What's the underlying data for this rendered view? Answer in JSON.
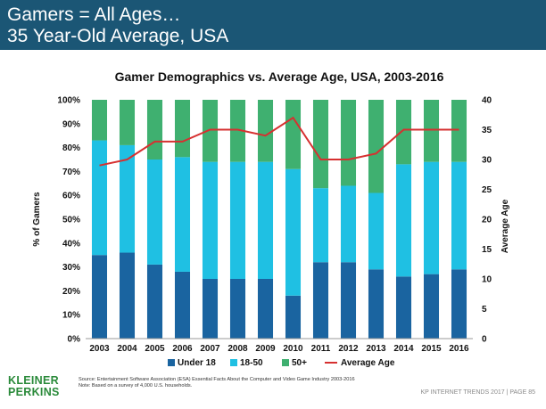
{
  "header": {
    "line1": "Gamers = All Ages…",
    "line2": "35 Year-Old Average, USA"
  },
  "footer": {
    "source_line1": "Source: Entertainment Software Association (ESA) Essential Facts About the Computer and Video Game Industry 2003-2016",
    "source_line2": "Note: Based on a survey of 4,000 U.S. households.",
    "logo_line1": "KLEINER",
    "logo_line2": "PERKINS",
    "page_info": "KP INTERNET TRENDS 2017   |   PAGE 85"
  },
  "colors": {
    "header_bg": "#1b5675",
    "under18": "#1a64a0",
    "age18_50": "#1fc0e3",
    "age50plus": "#3fb070",
    "avg_line": "#d63030",
    "logo": "#2a8a3a"
  },
  "chart_data": {
    "type": "bar",
    "stacked": true,
    "title": "Gamer Demographics vs. Average Age, USA, 2003-2016",
    "ylabel": "% of Gamers",
    "y2label": "Average Age",
    "ylim": [
      0,
      100
    ],
    "y2lim": [
      0,
      40
    ],
    "yticks": [
      "0%",
      "10%",
      "20%",
      "30%",
      "40%",
      "50%",
      "60%",
      "70%",
      "80%",
      "90%",
      "100%"
    ],
    "y2ticks": [
      "0",
      "5",
      "10",
      "15",
      "20",
      "25",
      "30",
      "35",
      "40"
    ],
    "categories": [
      "2003",
      "2004",
      "2005",
      "2006",
      "2007",
      "2008",
      "2009",
      "2010",
      "2011",
      "2012",
      "2013",
      "2014",
      "2015",
      "2016"
    ],
    "series": [
      {
        "name": "Under 18",
        "values": [
          35,
          36,
          31,
          28,
          25,
          25,
          25,
          18,
          32,
          32,
          29,
          26,
          27,
          29
        ]
      },
      {
        "name": "18-50",
        "values": [
          48,
          45,
          44,
          48,
          49,
          49,
          49,
          53,
          31,
          32,
          32,
          47,
          47,
          45
        ]
      },
      {
        "name": "50+",
        "values": [
          17,
          19,
          25,
          24,
          26,
          26,
          26,
          29,
          37,
          36,
          39,
          27,
          26,
          26
        ]
      }
    ],
    "line_series": {
      "name": "Average Age",
      "axis": "right",
      "values": [
        29,
        30,
        33,
        33,
        35,
        35,
        34,
        37,
        30,
        30,
        31,
        35,
        35,
        35
      ]
    },
    "legend": "bottom"
  }
}
